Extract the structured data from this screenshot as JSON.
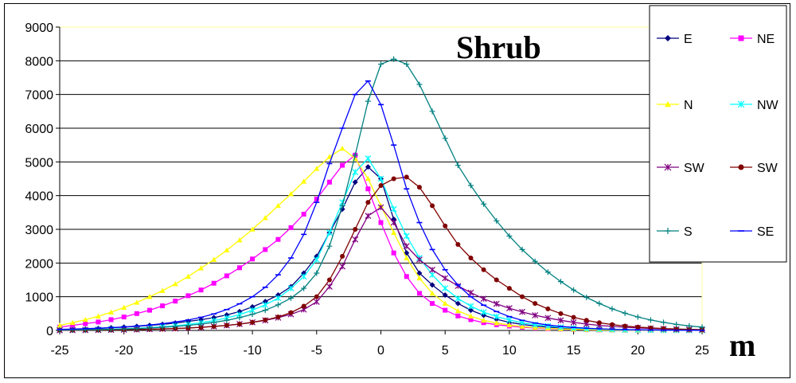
{
  "chart_data": {
    "type": "line",
    "title": "Shrub",
    "xlabel": "m",
    "ylabel": "",
    "xlim": [
      -25,
      25
    ],
    "ylim": [
      0,
      9000
    ],
    "xticks": [
      "-25",
      "-20",
      "-15",
      "-10",
      "-5",
      "0",
      "5",
      "10",
      "15",
      "20",
      "25"
    ],
    "yticks": [
      "0",
      "1000",
      "2000",
      "3000",
      "4000",
      "5000",
      "6000",
      "7000",
      "8000",
      "9000"
    ],
    "grid": "horizontal",
    "legend_position": "top-right",
    "x": [
      -25,
      -24,
      -23,
      -22,
      -21,
      -20,
      -19,
      -18,
      -17,
      -16,
      -15,
      -14,
      -13,
      -12,
      -11,
      -10,
      -9,
      -8,
      -7,
      -6,
      -5,
      -4,
      -3,
      -2,
      -1,
      0,
      1,
      2,
      3,
      4,
      5,
      6,
      7,
      8,
      9,
      10,
      11,
      12,
      13,
      14,
      15,
      16,
      17,
      18,
      19,
      20,
      21,
      22,
      23,
      24,
      25
    ],
    "series": [
      {
        "name": "E",
        "color": "#000080",
        "marker": "diamond",
        "values": [
          20,
          30,
          40,
          60,
          80,
          100,
          120,
          150,
          180,
          220,
          270,
          320,
          380,
          460,
          560,
          700,
          860,
          1050,
          1300,
          1700,
          2200,
          2900,
          3600,
          4400,
          4850,
          4500,
          3300,
          2300,
          1700,
          1350,
          1050,
          800,
          600,
          450,
          330,
          240,
          180,
          130,
          100,
          75,
          55,
          40,
          30,
          22,
          16,
          12,
          9,
          7,
          5,
          4,
          3
        ]
      },
      {
        "name": "NE",
        "color": "#ff00ff",
        "marker": "square",
        "values": [
          100,
          150,
          200,
          250,
          320,
          400,
          500,
          600,
          730,
          870,
          1030,
          1200,
          1400,
          1620,
          1860,
          2120,
          2400,
          2700,
          3050,
          3450,
          3900,
          4400,
          4900,
          5200,
          4200,
          3200,
          2300,
          1600,
          1100,
          800,
          600,
          430,
          320,
          230,
          170,
          130,
          95,
          70,
          52,
          40,
          30,
          22,
          17,
          13,
          10,
          8,
          6,
          5,
          4,
          3,
          2
        ]
      },
      {
        "name": "N",
        "color": "#ffff00",
        "marker": "triangle",
        "values": [
          150,
          230,
          320,
          420,
          540,
          680,
          830,
          1000,
          1180,
          1380,
          1600,
          1850,
          2100,
          2380,
          2680,
          3000,
          3340,
          3700,
          4050,
          4420,
          4800,
          5150,
          5400,
          5100,
          4500,
          3700,
          2900,
          2150,
          1550,
          1100,
          800,
          580,
          420,
          300,
          220,
          160,
          115,
          85,
          62,
          46,
          34,
          25,
          19,
          14,
          11,
          8,
          6,
          5,
          4,
          3,
          2
        ]
      },
      {
        "name": "NW",
        "color": "#00ffff",
        "marker": "star",
        "values": [
          10,
          15,
          20,
          28,
          38,
          50,
          65,
          85,
          110,
          140,
          180,
          230,
          290,
          370,
          470,
          600,
          760,
          960,
          1250,
          1600,
          2100,
          2900,
          3800,
          4700,
          5100,
          4500,
          3600,
          2800,
          2150,
          1650,
          1250,
          950,
          720,
          540,
          410,
          310,
          230,
          170,
          130,
          95,
          70,
          52,
          38,
          28,
          20,
          15,
          11,
          8,
          6,
          5,
          4
        ]
      },
      {
        "name": "SW",
        "color": "#800080",
        "marker": "star",
        "values": [
          5,
          8,
          10,
          13,
          17,
          22,
          28,
          36,
          46,
          58,
          74,
          94,
          120,
          150,
          190,
          240,
          300,
          380,
          480,
          620,
          850,
          1300,
          1900,
          2700,
          3400,
          3650,
          3200,
          2500,
          2100,
          1800,
          1550,
          1320,
          1120,
          940,
          790,
          660,
          550,
          450,
          370,
          300,
          240,
          190,
          150,
          120,
          95,
          75,
          58,
          45,
          35,
          27,
          21
        ]
      },
      {
        "name": "SW",
        "color": "#800000",
        "marker": "circle",
        "values": [
          5,
          7,
          9,
          12,
          16,
          20,
          26,
          34,
          44,
          56,
          72,
          92,
          118,
          150,
          190,
          240,
          310,
          400,
          530,
          720,
          1000,
          1500,
          2200,
          3000,
          3800,
          4300,
          4500,
          4550,
          4250,
          3700,
          3100,
          2550,
          2150,
          1800,
          1500,
          1250,
          1000,
          800,
          640,
          500,
          390,
          300,
          230,
          175,
          130,
          100,
          75,
          56,
          42,
          32,
          24
        ]
      },
      {
        "name": "S",
        "color": "#008080",
        "marker": "plus",
        "values": [
          10,
          14,
          19,
          25,
          33,
          43,
          56,
          72,
          92,
          118,
          150,
          190,
          240,
          300,
          380,
          480,
          600,
          760,
          960,
          1250,
          1700,
          2500,
          3700,
          5200,
          6800,
          7900,
          8050,
          7900,
          7300,
          6500,
          5700,
          4900,
          4300,
          3750,
          3250,
          2800,
          2400,
          2050,
          1730,
          1450,
          1200,
          980,
          800,
          640,
          510,
          400,
          310,
          240,
          180,
          135,
          100
        ]
      },
      {
        "name": "SE",
        "color": "#0000ff",
        "marker": "dash",
        "values": [
          30,
          40,
          52,
          66,
          84,
          105,
          130,
          160,
          200,
          250,
          310,
          390,
          490,
          620,
          790,
          1000,
          1280,
          1650,
          2150,
          2850,
          3800,
          4950,
          6000,
          7000,
          7400,
          6700,
          5500,
          4200,
          3200,
          2400,
          1800,
          1350,
          1000,
          750,
          560,
          410,
          300,
          220,
          160,
          120,
          90,
          65,
          48,
          35,
          26,
          19,
          14,
          10,
          8,
          6,
          5
        ]
      }
    ]
  }
}
